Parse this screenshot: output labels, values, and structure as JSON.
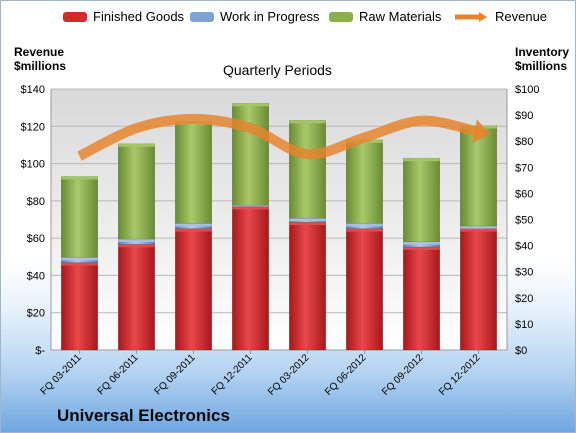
{
  "company_name": "Universal Electronics",
  "colors": {
    "finished_goods": "#d42a2e",
    "work_in_progress": "#7ea3d8",
    "raw_materials": "#8db04a",
    "revenue": "#e8832a"
  },
  "chart_data": {
    "type": "bar",
    "subtype": "stacked-bar-with-line",
    "title": "Quarterly Periods",
    "left_axis_label": "Revenue $millions",
    "right_axis_label": "Inventory $millions",
    "left_axis_title_lines": [
      "Revenue",
      "$millions"
    ],
    "right_axis_title_lines": [
      "Inventory",
      "$millions"
    ],
    "categories": [
      "FQ 03-2011",
      "FQ 06-2011",
      "FQ 09-2011",
      "FQ 12-2011",
      "FQ 03-2012",
      "FQ 06-2012",
      "FQ 09-2012",
      "FQ 12-2012"
    ],
    "left_axis": {
      "min": 0,
      "max": 140,
      "step": 20,
      "ticks": [
        "$-",
        "$20",
        "$40",
        "$60",
        "$80",
        "$100",
        "$120",
        "$140"
      ]
    },
    "right_axis": {
      "min": 0,
      "max": 100,
      "step": 10,
      "ticks": [
        "$0",
        "$10",
        "$20",
        "$30",
        "$40",
        "$50",
        "$60",
        "$70",
        "$80",
        "$90",
        "$100"
      ]
    },
    "series": [
      {
        "name": "Finished Goods",
        "axis": "right",
        "kind": "bar",
        "values": [
          33.5,
          40.5,
          46.5,
          55.0,
          49.0,
          46.5,
          39.5,
          46.5
        ]
      },
      {
        "name": "Work in Progress",
        "axis": "right",
        "kind": "bar",
        "values": [
          2.0,
          2.0,
          2.0,
          0.5,
          1.5,
          2.0,
          2.0,
          1.0
        ]
      },
      {
        "name": "Raw Materials",
        "axis": "right",
        "kind": "bar",
        "values": [
          31.0,
          36.5,
          39.0,
          39.0,
          37.5,
          32.0,
          32.0,
          38.5
        ]
      },
      {
        "name": "Revenue",
        "axis": "left",
        "kind": "line",
        "values": [
          104,
          119,
          124,
          119,
          105,
          114,
          123,
          117
        ]
      }
    ],
    "legend": [
      "Finished Goods",
      "Work in Progress",
      "Raw Materials",
      "Revenue"
    ],
    "legend_position": "top",
    "grid": true
  }
}
